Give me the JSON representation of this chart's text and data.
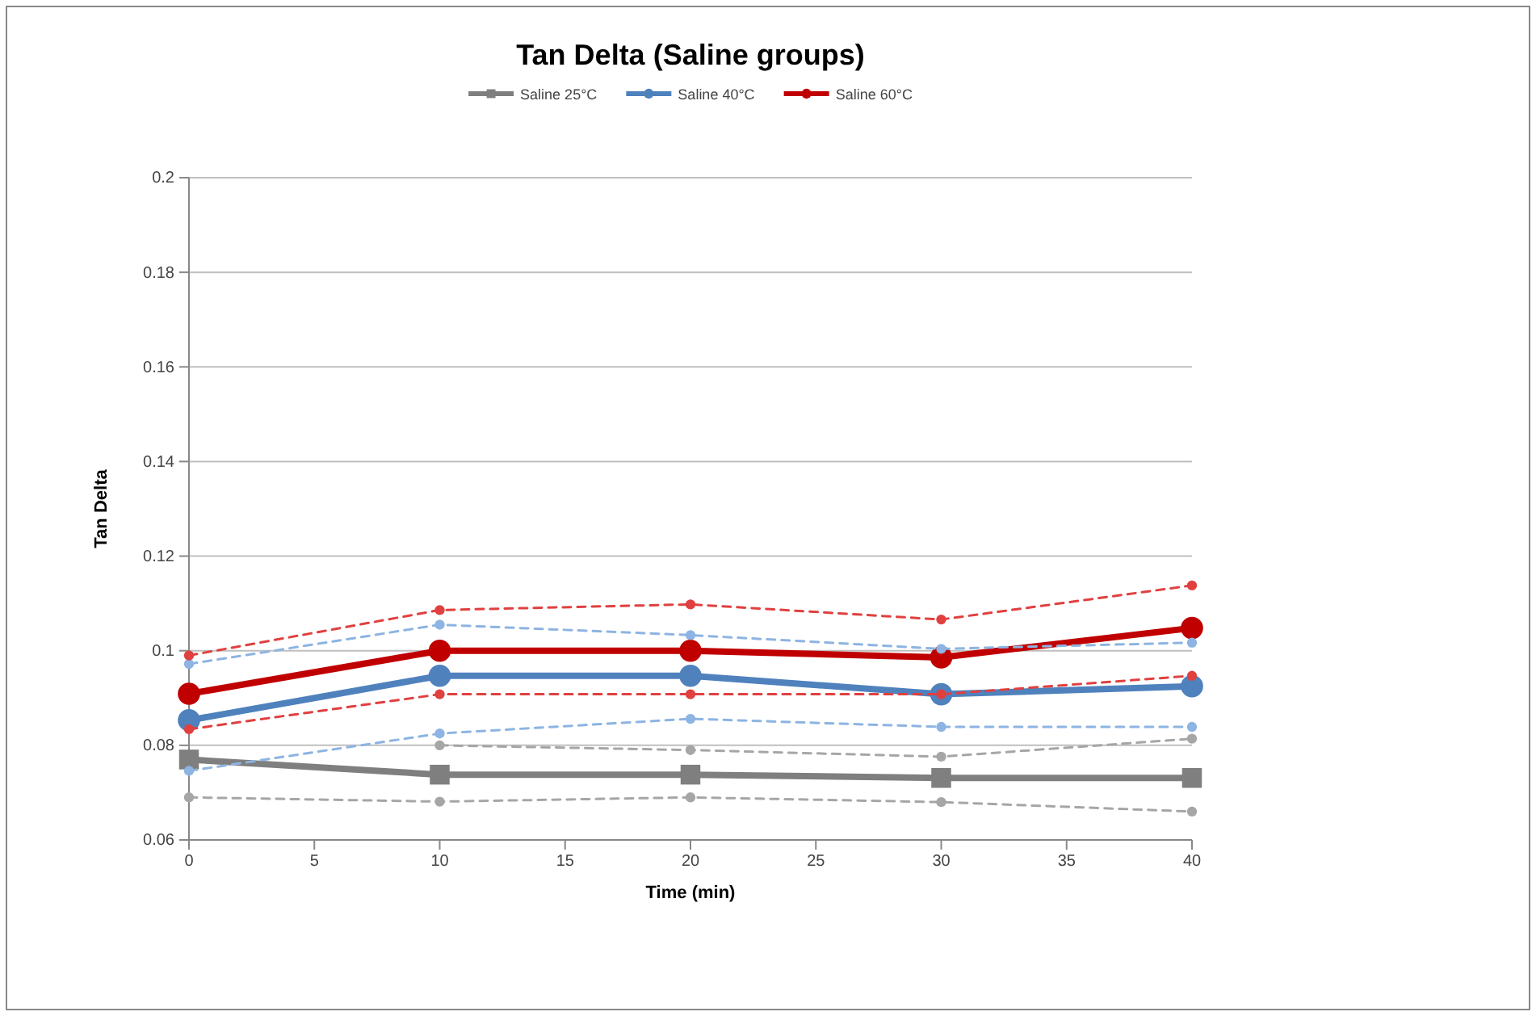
{
  "chart_data": {
    "type": "line",
    "title": "Tan Delta (Saline groups)",
    "xlabel": "Time (min)",
    "ylabel": "Tan Delta",
    "x": [
      0,
      10,
      20,
      30,
      40
    ],
    "xlim": [
      0,
      40
    ],
    "xticks": [
      0,
      5,
      10,
      15,
      20,
      25,
      30,
      35,
      40
    ],
    "ylim": [
      0.06,
      0.2
    ],
    "yticks": [
      0.06,
      0.08,
      0.1,
      0.12,
      0.14,
      0.16,
      0.18,
      0.2
    ],
    "grid": "y",
    "legend": "top",
    "series": [
      {
        "name": "Saline 25°C",
        "color": "#7f7f7f",
        "marker": "square",
        "line_style": "solid",
        "values": [
          0.077,
          0.0738,
          0.0738,
          0.0731,
          0.0731
        ]
      },
      {
        "name": "Saline 40°C",
        "color": "#4f81bd",
        "marker": "circle",
        "line_style": "solid",
        "values": [
          0.0853,
          0.0947,
          0.0947,
          0.0908,
          0.0925
        ]
      },
      {
        "name": "Saline 60°C",
        "color": "#c00000",
        "marker": "circle",
        "line_style": "solid",
        "values": [
          0.0909,
          0.1,
          0.1,
          0.0986,
          0.1048
        ]
      },
      {
        "color": "#a6a6a6",
        "marker": "circle",
        "line_style": "dashed",
        "values": [
          null,
          0.08,
          0.079,
          0.0776,
          0.0814
        ]
      },
      {
        "color": "#a6a6a6",
        "marker": "circle",
        "line_style": "dashed",
        "values": [
          0.069,
          0.0681,
          0.069,
          0.068,
          0.066
        ]
      },
      {
        "color": "#8db4e2",
        "marker": "circle",
        "line_style": "dashed",
        "values": [
          0.0972,
          0.1055,
          0.1033,
          0.1004,
          0.1017
        ]
      },
      {
        "color": "#8db4e2",
        "marker": "circle",
        "line_style": "dashed",
        "values": [
          0.0746,
          0.0825,
          0.0856,
          0.0839,
          0.0839
        ]
      },
      {
        "color": "#e04040",
        "marker": "circle",
        "line_style": "dashed",
        "values": [
          0.099,
          0.1086,
          0.1098,
          0.1066,
          0.1138
        ]
      },
      {
        "color": "#e04040",
        "marker": "circle",
        "line_style": "dashed",
        "values": [
          0.0834,
          0.0908,
          0.0908,
          0.0908,
          0.0947
        ]
      }
    ]
  }
}
